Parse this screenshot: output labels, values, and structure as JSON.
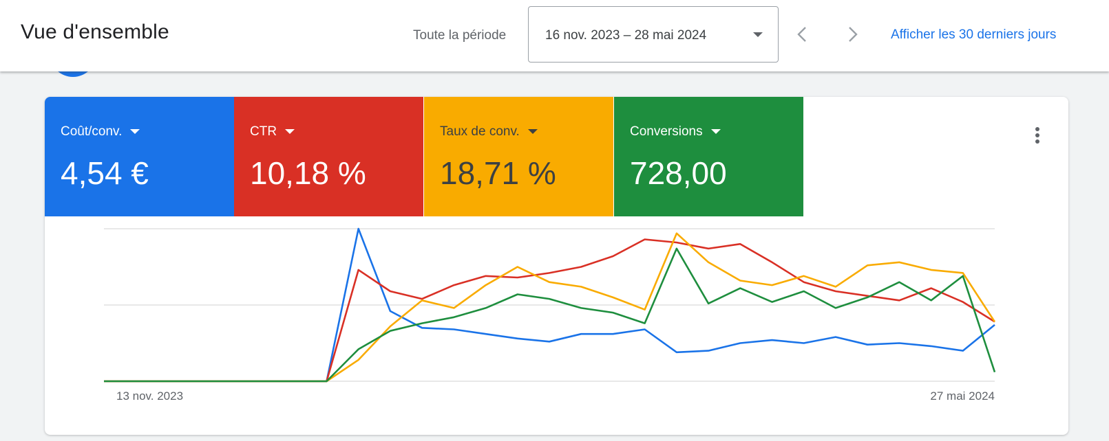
{
  "header": {
    "title": "Vue d'ensemble",
    "period_label": "Toute la période",
    "date_range": "16 nov. 2023 – 28 mai 2024",
    "last30_link": "Afficher les 30 derniers jours",
    "prev_icon": "chevron-left-icon",
    "next_icon": "chevron-right-icon"
  },
  "scorecards": [
    {
      "label": "Coût/conv.",
      "value": "4,54 €",
      "color": "#1a73e8"
    },
    {
      "label": "CTR",
      "value": "10,18 %",
      "color": "#d93025"
    },
    {
      "label": "Taux de conv.",
      "value": "18,71 %",
      "color": "#f9ab00"
    },
    {
      "label": "Conversions",
      "value": "728,00",
      "color": "#1e8e3e"
    }
  ],
  "card_menu_icon": "more-vert-icon",
  "chart_data": {
    "type": "line",
    "x_labels": [
      "13 nov. 2023",
      "27 mai 2024"
    ],
    "x_count": 29,
    "ylim": [
      0,
      100
    ],
    "grid": true,
    "series": [
      {
        "color": "#1a73e8",
        "values": [
          0,
          0,
          0,
          0,
          0,
          0,
          0,
          0,
          100,
          46,
          35,
          34,
          31,
          28,
          26,
          31,
          31,
          34,
          19,
          20,
          25,
          27,
          25,
          29,
          24,
          25,
          23,
          20,
          37
        ]
      },
      {
        "color": "#d93025",
        "values": [
          0,
          0,
          0,
          0,
          0,
          0,
          0,
          0,
          73,
          59,
          54,
          63,
          69,
          68,
          71,
          75,
          82,
          93,
          91,
          87,
          90,
          78,
          65,
          59,
          56,
          53,
          61,
          52,
          39
        ]
      },
      {
        "color": "#f9ab00",
        "values": [
          0,
          0,
          0,
          0,
          0,
          0,
          0,
          0,
          14,
          36,
          53,
          48,
          63,
          75,
          65,
          62,
          55,
          47,
          97,
          78,
          66,
          63,
          69,
          62,
          76,
          78,
          73,
          71,
          39
        ]
      },
      {
        "color": "#1e8e3e",
        "values": [
          0,
          0,
          0,
          0,
          0,
          0,
          0,
          0,
          21,
          33,
          38,
          42,
          48,
          57,
          54,
          48,
          45,
          38,
          87,
          51,
          61,
          52,
          59,
          48,
          55,
          65,
          53,
          69,
          6
        ]
      }
    ]
  }
}
